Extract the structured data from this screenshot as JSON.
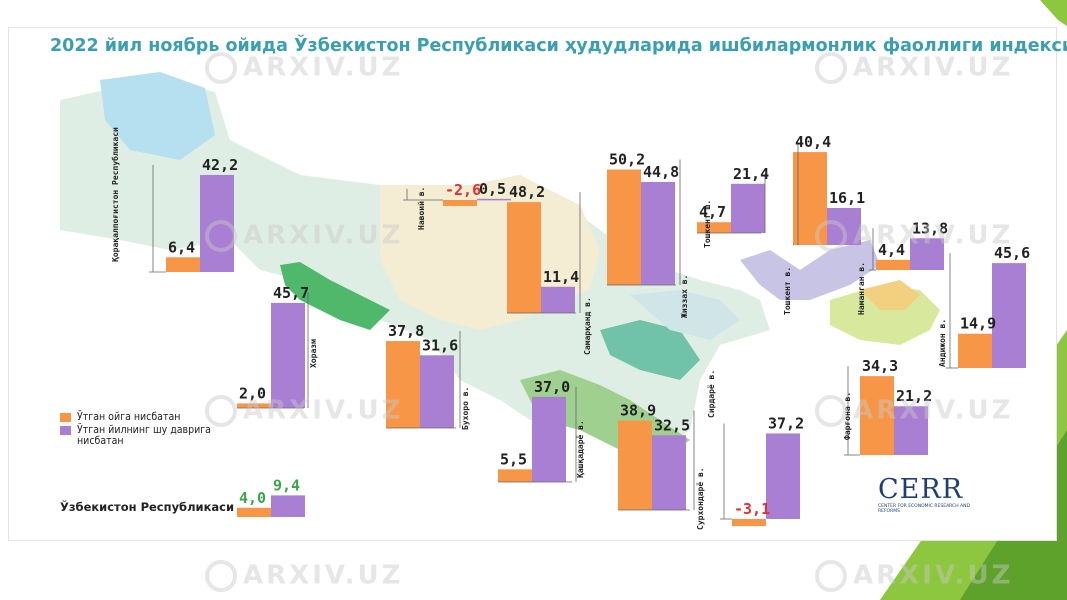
{
  "title": "2022 йил ноябрь ойида Ўзбекистон Республикаси ҳудудларида ишбилармонлик фаоллиги индекси",
  "legend": {
    "items": [
      {
        "label": "Ўтган ойга нисбатан",
        "color": "#f79646"
      },
      {
        "label": "Ўтган йилнинг шу даврига нисбатан",
        "color": "#a97fd3"
      }
    ]
  },
  "national": {
    "label": "Ўзбекистон Республикаси"
  },
  "logo": {
    "text": "CERR",
    "subtext": "CENTER FOR ECONOMIC RESEARCH AND REFORMS"
  },
  "watermark": "ARXIV.UZ",
  "colors": {
    "orange": "#f79646",
    "purple": "#a97fd3",
    "negative": "#e03030",
    "positive_national": "#3aa54a"
  },
  "chart_data": {
    "type": "bar",
    "title": "2022 йил ноябрь ойида Ўзбекистон Республикаси ҳудудларида ишбилармонлик фаоллиги индекси",
    "series_names": [
      "Ўтган ойга нисбатан",
      "Ўтган йилнинг шу даврига нисбатан"
    ],
    "regions": [
      {
        "name": "Қорақалпоғистон Республикаси",
        "mom": 6.4,
        "mom_label": "6,4",
        "yoy": 42.2,
        "yoy_label": "42,2"
      },
      {
        "name": "Навоий в.",
        "mom": -2.6,
        "mom_label": "-2,6",
        "yoy": 0.5,
        "yoy_label": "0,5"
      },
      {
        "name": "Хоразм",
        "mom": 2.0,
        "mom_label": "2,0",
        "yoy": 45.7,
        "yoy_label": "45,7"
      },
      {
        "name": "Бухоро в.",
        "mom": 37.8,
        "mom_label": "37,8",
        "yoy": 31.6,
        "yoy_label": "31,6"
      },
      {
        "name": "Самарқанд в.",
        "mom": 48.2,
        "mom_label": "48,2",
        "yoy": 11.4,
        "yoy_label": "11,4"
      },
      {
        "name": "Қашқадарё в.",
        "mom": 5.5,
        "mom_label": "5,5",
        "yoy": 37.0,
        "yoy_label": "37,0"
      },
      {
        "name": "Жиззах в.",
        "mom": 50.2,
        "mom_label": "50,2",
        "yoy": 44.8,
        "yoy_label": "44,8"
      },
      {
        "name": "Сурхондарё в.",
        "mom": 38.9,
        "mom_label": "38,9",
        "yoy": 32.5,
        "yoy_label": "32,5"
      },
      {
        "name": "Тошкент ш.",
        "mom": 4.7,
        "mom_label": "4,7",
        "yoy": 21.4,
        "yoy_label": "21,4"
      },
      {
        "name": "Сирдарё в.",
        "mom": -3.1,
        "mom_label": "-3,1",
        "yoy": 37.2,
        "yoy_label": "37,2"
      },
      {
        "name": "Тошкент в.",
        "mom": 40.4,
        "mom_label": "40,4",
        "yoy": 16.1,
        "yoy_label": "16,1"
      },
      {
        "name": "Наманган в.",
        "mom": 4.4,
        "mom_label": "4,4",
        "yoy": 13.8,
        "yoy_label": "13,8"
      },
      {
        "name": "Андижон в.",
        "mom": 14.9,
        "mom_label": "14,9",
        "yoy": 45.6,
        "yoy_label": "45,6"
      },
      {
        "name": "Фарғона в.",
        "mom": 34.3,
        "mom_label": "34,3",
        "yoy": 21.2,
        "yoy_label": "21,2"
      }
    ],
    "national": {
      "name": "Ўзбекистон Республикаси",
      "mom": 4.0,
      "mom_label": "4,0",
      "yoy": 9.4,
      "yoy_label": "9,4"
    }
  }
}
